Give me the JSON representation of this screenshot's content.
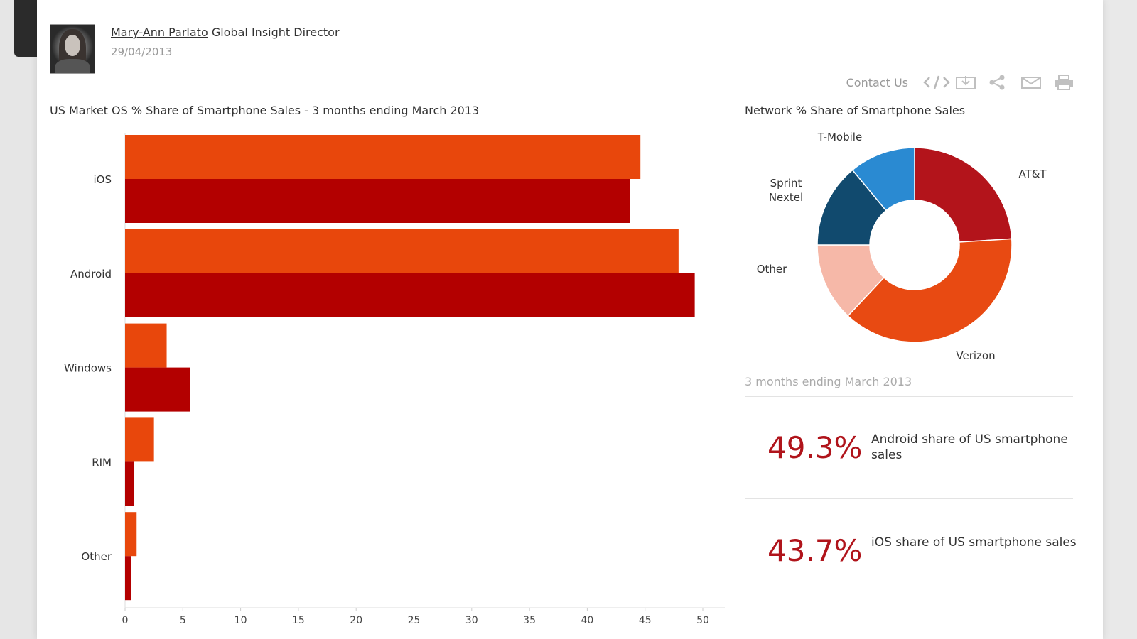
{
  "author": {
    "name": "Mary-Ann Parlato",
    "role": "Global Insight Director",
    "date": "29/04/2013"
  },
  "toolbar": {
    "contact_label": "Contact Us",
    "icons": [
      "embed-icon",
      "download-icon",
      "share-icon",
      "email-icon",
      "print-icon"
    ]
  },
  "chart_data": [
    {
      "type": "bar",
      "orientation": "horizontal",
      "title": "US Market OS % Share of Smartphone Sales - 3 months ending March 2013",
      "xlabel": "",
      "ylabel": "",
      "categories": [
        "iOS",
        "Android",
        "Windows",
        "RIM",
        "Other"
      ],
      "series": [
        {
          "color": "#e8470c",
          "values": [
            44.6,
            47.9,
            3.6,
            2.5,
            1.0
          ]
        },
        {
          "color": "#b30000",
          "values": [
            43.7,
            49.3,
            5.6,
            0.8,
            0.5
          ]
        }
      ],
      "xlim": [
        0,
        50
      ],
      "xticks": [
        0,
        5,
        10,
        15,
        20,
        25,
        30,
        35,
        40,
        45,
        50
      ],
      "grid": false
    },
    {
      "type": "pie",
      "variant": "donut",
      "title": "Network % Share of Smartphone Sales",
      "slices": [
        {
          "label": "AT&T",
          "value": 24,
          "color": "#b3141b"
        },
        {
          "label": "Verizon",
          "value": 38,
          "color": "#e84a12"
        },
        {
          "label": "Other",
          "value": 13,
          "color": "#f6b8a8"
        },
        {
          "label": "Sprint Nextel",
          "value": 14,
          "color": "#114a6e"
        },
        {
          "label": "T-Mobile",
          "value": 11,
          "color": "#2a8ad2"
        }
      ],
      "note": "3 months ending March 2013"
    }
  ],
  "stats": [
    {
      "value": "49.3%",
      "text": "Android share of US smartphone sales"
    },
    {
      "value": "43.7%",
      "text": "iOS share of US smartphone sales"
    }
  ]
}
